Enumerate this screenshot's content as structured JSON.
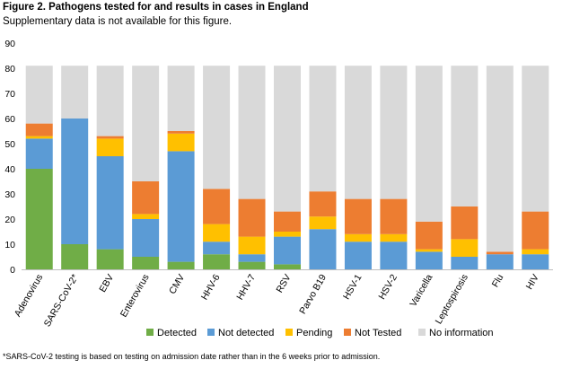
{
  "figure": {
    "title": "Figure 2. Pathogens tested for and results in cases in England",
    "subtitle": "Supplementary data is not available for this figure.",
    "footnote": "*SARS-CoV-2 testing is based on testing on admission date rather than in the 6 weeks prior to admission."
  },
  "chart_data": {
    "type": "bar",
    "stacked": true,
    "categories": [
      "Adenovirus",
      "SARS-CoV-2*",
      "EBV",
      "Enterovirus",
      "CMV",
      "HHV-6",
      "HHV-7",
      "RSV",
      "Parvo B19",
      "HSV-1",
      "HSV-2",
      "Varicella",
      "Leptospirosis",
      "Flu",
      "HIV"
    ],
    "series": [
      {
        "name": "Detected",
        "color": "#70ad47",
        "values": [
          40,
          10,
          8,
          5,
          3,
          6,
          3,
          2,
          0,
          0,
          0,
          0,
          0,
          0,
          0
        ]
      },
      {
        "name": "Not detected",
        "color": "#5b9bd5",
        "values": [
          12,
          50,
          37,
          15,
          44,
          5,
          3,
          11,
          16,
          11,
          11,
          7,
          5,
          6,
          6
        ]
      },
      {
        "name": "Pending",
        "color": "#ffc000",
        "values": [
          1,
          0,
          7,
          2,
          7,
          7,
          7,
          2,
          5,
          3,
          3,
          1,
          7,
          0,
          2
        ]
      },
      {
        "name": "Not Tested",
        "color": "#ed7d31",
        "values": [
          5,
          0,
          1,
          13,
          1,
          14,
          15,
          8,
          10,
          14,
          14,
          11,
          13,
          1,
          15
        ]
      },
      {
        "name": "No information",
        "color": "#d9d9d9",
        "values": [
          23,
          21,
          28,
          46,
          26,
          49,
          53,
          58,
          50,
          53,
          53,
          62,
          56,
          74,
          58
        ]
      }
    ],
    "ylim": [
      0,
      90
    ],
    "yticks": [
      0,
      10,
      20,
      30,
      40,
      50,
      60,
      70,
      80,
      90
    ],
    "grid": false,
    "legend_position": "bottom"
  }
}
